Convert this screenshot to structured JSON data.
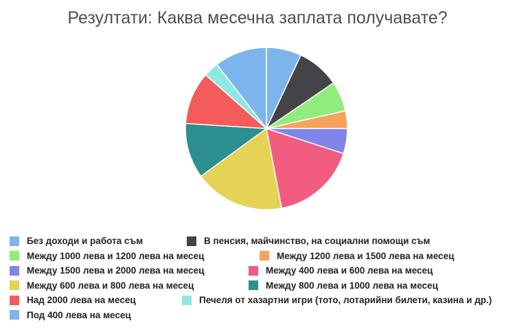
{
  "chart_data": {
    "type": "pie",
    "title": "Резултати: Каква месечна заплата получавате?",
    "slices": [
      {
        "label": "Без доходи и работа съм",
        "value": 7,
        "color": "#7cb5ec"
      },
      {
        "label": "В пенсия, майчинство, на социални помощи съм",
        "value": 8.5,
        "color": "#434348"
      },
      {
        "label": "Между 1000 лева и 1200 лева на месец",
        "value": 6,
        "color": "#90ed7d"
      },
      {
        "label": "Между 1200 лева и 1500 лева на месец",
        "value": 3.5,
        "color": "#f7a35c"
      },
      {
        "label": "Между 1500 лева и 2000 лева на месец",
        "value": 5,
        "color": "#8085e9"
      },
      {
        "label": "Между 400 лева и 600 лева на месец",
        "value": 17,
        "color": "#f15c80"
      },
      {
        "label": "Между 600 лева и 800 лева на месец",
        "value": 18,
        "color": "#e4d354"
      },
      {
        "label": "Между 800 лева и 1000 лева на месец",
        "value": 11,
        "color": "#2b908f"
      },
      {
        "label": "Над 2000 лева на месец",
        "value": 10.5,
        "color": "#f45b5b"
      },
      {
        "label": "Печеля от хазартни игри (тото, лотарийни билети, казина и др.)",
        "value": 3,
        "color": "#91e8e1"
      },
      {
        "label": "Под 400 лева на месец",
        "value": 10.5,
        "color": "#7cb5ec"
      }
    ],
    "legend_position": "bottom"
  }
}
